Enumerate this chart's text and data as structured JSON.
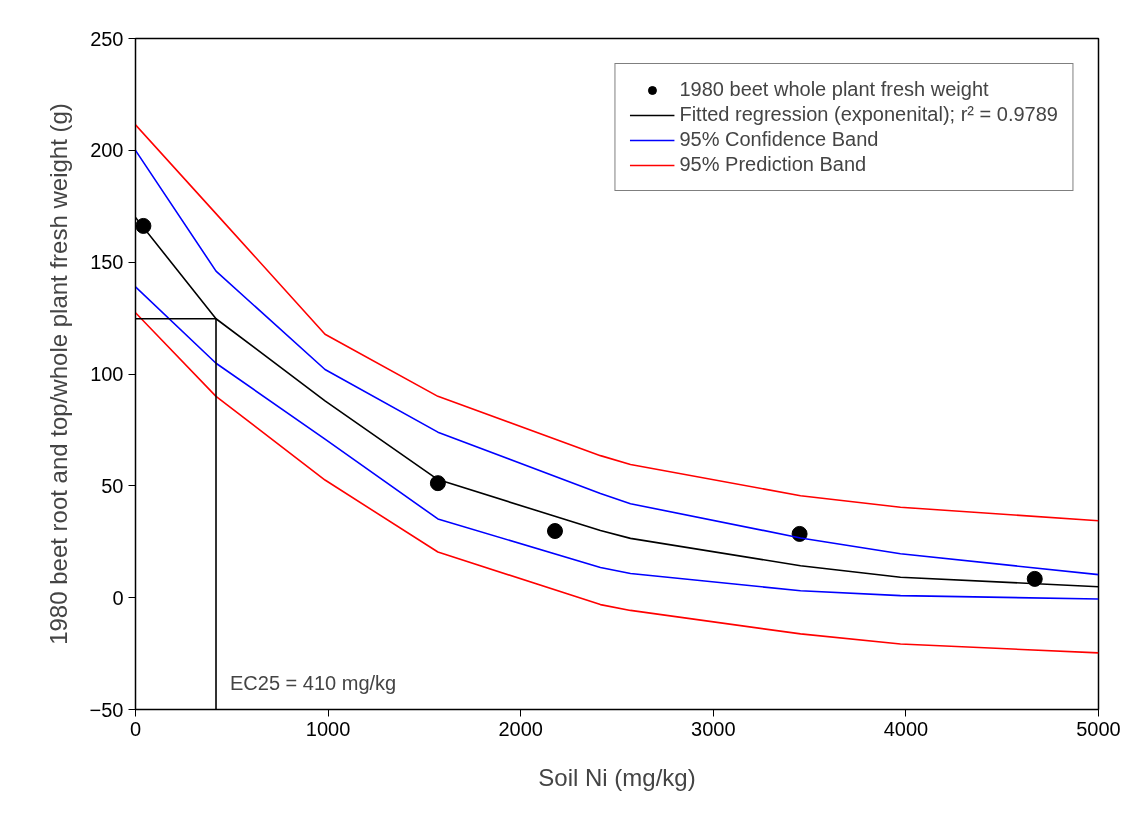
{
  "chart_data": {
    "type": "line",
    "xlabel": "Soil Ni (mg/kg)",
    "ylabel": "1980 beet root and top/whole plant fresh weight (g)",
    "xlim": [
      0,
      5000
    ],
    "xticks": [
      0,
      1000,
      2000,
      3000,
      4000,
      5000
    ],
    "ylim": [
      -50,
      250
    ],
    "yticks": [
      -50,
      0,
      50,
      100,
      150,
      200,
      250
    ],
    "grid": false,
    "legend": "top right",
    "line_style": "solid",
    "series": [
      {
        "name": "1980 beet whole plant fresh weight",
        "type": "scatter",
        "marker": "circle",
        "color": "#000000",
        "x": [
          41,
          1570,
          2178,
          3448,
          4669
        ],
        "values": [
          166.2,
          51.2,
          29.8,
          28.5,
          8.4
        ]
      },
      {
        "name": "Fitted regression (exponenital); r² = 0.9789",
        "color": "#000000",
        "x": [
          0,
          418,
          984,
          1570,
          2414,
          2570,
          3453,
          3972,
          5000
        ],
        "values": [
          170,
          124.7,
          88,
          52.8,
          30,
          26.5,
          14.3,
          9.1,
          4.9
        ]
      },
      {
        "name": "95% Confidence Band",
        "color": "#0000ff",
        "x": [
          0,
          418,
          984,
          1570,
          2414,
          2570,
          3453,
          3972,
          5000
        ],
        "values": [
          200,
          146,
          102,
          74,
          46.6,
          42,
          26.7,
          19.6,
          10.3
        ]
      },
      {
        "color": "#0000ff",
        "x": [
          0,
          418,
          984,
          1570,
          2414,
          2570,
          3453,
          3972,
          5000
        ],
        "values": [
          139,
          104.8,
          70.9,
          35.2,
          13.5,
          10.8,
          3.1,
          0.9,
          -0.6
        ]
      },
      {
        "name": "95% Prediction Band",
        "color": "#ff0000",
        "x": [
          0,
          418,
          984,
          1570,
          2414,
          2570,
          3453,
          3972,
          5000
        ],
        "values": [
          211.4,
          171.7,
          117.8,
          90,
          63.5,
          59.5,
          45.6,
          40.4,
          34.4
        ]
      },
      {
        "color": "#ff0000",
        "x": [
          0,
          418,
          984,
          1570,
          2414,
          2570,
          3453,
          3972,
          5000
        ],
        "values": [
          127.4,
          90,
          52.6,
          20.4,
          -3.1,
          -5.7,
          -16.2,
          -20.7,
          -24.7
        ]
      },
      {
        "color": "#000000",
        "x": [
          0,
          418,
          418
        ],
        "values": [
          124.7,
          124.7,
          -50
        ]
      }
    ],
    "annotations": [
      {
        "text": "EC25 = 410 mg/kg",
        "x": 418,
        "y": -38
      }
    ]
  }
}
